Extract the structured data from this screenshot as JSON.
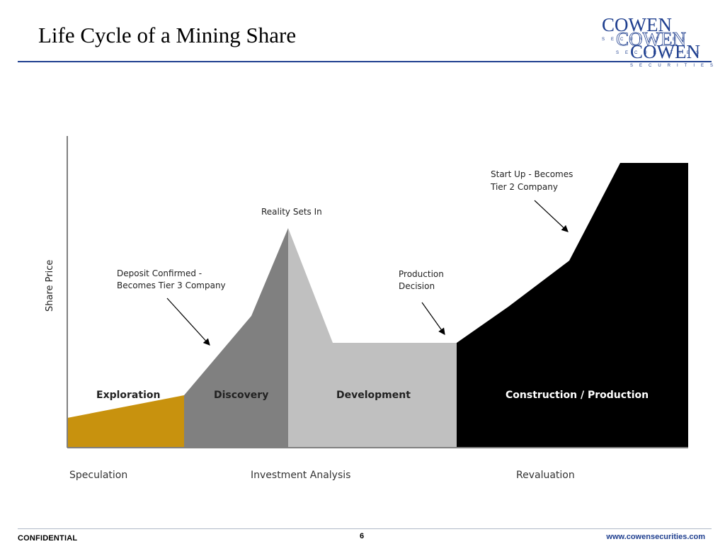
{
  "slide": {
    "title": "Life Cycle of a Mining Share",
    "page_number": "6",
    "confidential": "CONFIDENTIAL",
    "website": "www.cowensecurities.com"
  },
  "logo": {
    "name": "COWEN",
    "tagline": "SECURITIES",
    "color": "#1f3f8f"
  },
  "diagram": {
    "y_axis_label": "Share Price",
    "phases": [
      {
        "label": "Exploration",
        "color": "#c8920e",
        "text_color": "#222222"
      },
      {
        "label": "Discovery",
        "color": "#808080",
        "text_color": "#222222"
      },
      {
        "label": "Development",
        "color": "#c0c0c0",
        "text_color": "#222222"
      },
      {
        "label": "Construction / Production",
        "color": "#000000",
        "text_color": "#ffffff"
      }
    ],
    "annotations": {
      "deposit_confirmed": [
        "Deposit Confirmed -",
        "Becomes Tier 3 Company"
      ],
      "reality_sets_in": "Reality Sets In",
      "production_decision": [
        "Production",
        "Decision"
      ],
      "start_up": [
        "Start Up - Becomes",
        "Tier 2 Company"
      ]
    },
    "stages": [
      "Speculation",
      "Investment Analysis",
      "Revaluation"
    ]
  }
}
